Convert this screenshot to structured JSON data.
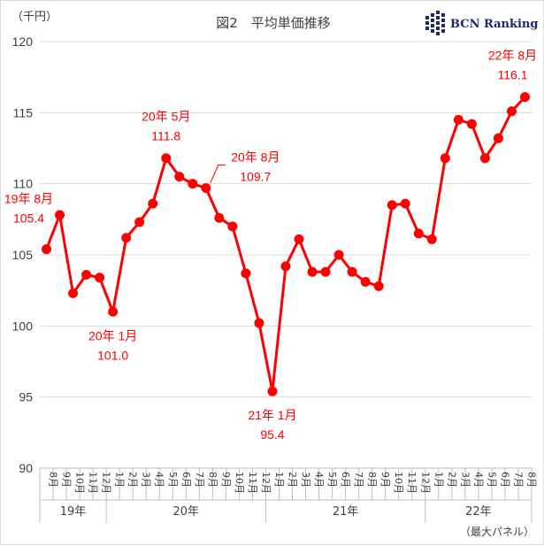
{
  "chart_data": {
    "type": "line",
    "title": "図2　平均単価推移",
    "unit_label": "（千円）",
    "note": "（最大パネル）",
    "brand": "BCN Ranking",
    "line_color": "#ff0000",
    "ylim": [
      90,
      120
    ],
    "yticks": [
      90,
      95,
      100,
      105,
      110,
      115,
      120
    ],
    "categories": [
      "8月",
      "9月",
      "10月",
      "11月",
      "12月",
      "1月",
      "2月",
      "3月",
      "4月",
      "5月",
      "6月",
      "7月",
      "8月",
      "9月",
      "10月",
      "11月",
      "12月",
      "1月",
      "2月",
      "3月",
      "4月",
      "5月",
      "6月",
      "7月",
      "8月",
      "9月",
      "10月",
      "11月",
      "12月",
      "1月",
      "2月",
      "3月",
      "4月",
      "5月",
      "6月",
      "7月",
      "8月"
    ],
    "years": [
      {
        "label": "19年",
        "start": 0,
        "end": 4
      },
      {
        "label": "20年",
        "start": 5,
        "end": 16
      },
      {
        "label": "21年",
        "start": 17,
        "end": 28
      },
      {
        "label": "22年",
        "start": 29,
        "end": 36
      }
    ],
    "series": [
      {
        "values": [
          105.4,
          107.8,
          102.3,
          103.6,
          103.4,
          101.0,
          106.2,
          107.3,
          108.6,
          111.8,
          110.5,
          110.0,
          109.7,
          107.6,
          107.0,
          103.7,
          100.2,
          95.4,
          104.2,
          106.1,
          103.8,
          103.8,
          105.0,
          103.8,
          103.1,
          102.8,
          108.5,
          108.6,
          106.5,
          106.1,
          111.8,
          114.5,
          114.2,
          111.8,
          113.2,
          115.1,
          116.1
        ]
      }
    ],
    "annotations": [
      {
        "index": 0,
        "line1": "19年 8月",
        "line2": "105.4"
      },
      {
        "index": 5,
        "line1": "20年 1月",
        "line2": "101.0"
      },
      {
        "index": 9,
        "line1": "20年 5月",
        "line2": "111.8"
      },
      {
        "index": 12,
        "line1": "20年 8月",
        "line2": "109.7"
      },
      {
        "index": 17,
        "line1": "21年 1月",
        "line2": "95.4"
      },
      {
        "index": 36,
        "line1": "22年 8月",
        "line2": "116.1"
      }
    ]
  }
}
